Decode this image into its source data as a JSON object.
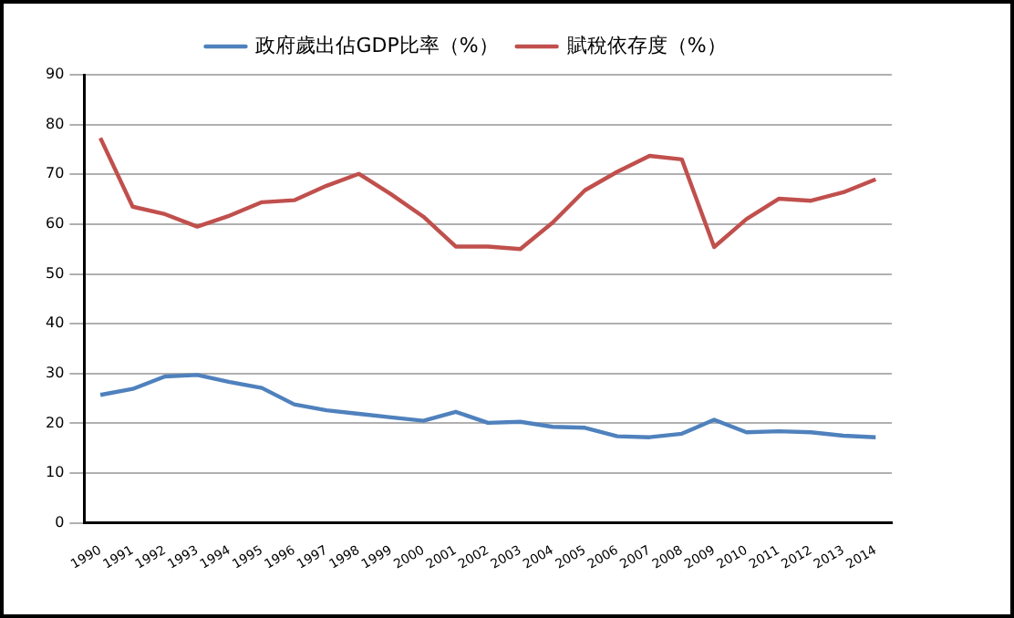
{
  "chart_data": {
    "type": "line",
    "categories": [
      "1990",
      "1991",
      "1992",
      "1993",
      "1994",
      "1995",
      "1996",
      "1997",
      "1998",
      "1999",
      "2000",
      "2001",
      "2002",
      "2003",
      "2004",
      "2005",
      "2006",
      "2007",
      "2008",
      "2009",
      "2010",
      "2011",
      "2012",
      "2013",
      "2014"
    ],
    "series": [
      {
        "name": "政府歲出佔GDP比率（%）",
        "color": "#4f81bd",
        "values": [
          25.7,
          26.9,
          29.4,
          29.7,
          28.3,
          27.1,
          23.8,
          22.6,
          21.9,
          21.2,
          20.5,
          22.3,
          20.1,
          20.3,
          19.3,
          19.1,
          17.4,
          17.2,
          17.9,
          20.7,
          18.2,
          18.4,
          18.2,
          17.5,
          17.2
        ]
      },
      {
        "name": "賦稅依存度（%）",
        "color": "#c0504d",
        "values": [
          77.3,
          63.5,
          62,
          59.5,
          61.7,
          64.4,
          64.8,
          67.7,
          70.1,
          66,
          61.5,
          55.5,
          55.5,
          55,
          60.3,
          66.8,
          70.5,
          73.7,
          73,
          55.4,
          61,
          65.1,
          64.7,
          66.4,
          69
        ]
      }
    ],
    "ylim": [
      0,
      90
    ],
    "yticks": [
      0,
      10,
      20,
      30,
      40,
      50,
      60,
      70,
      80,
      90
    ],
    "grid": "y",
    "legend": "top",
    "marker": "none",
    "line_style": "solid"
  }
}
